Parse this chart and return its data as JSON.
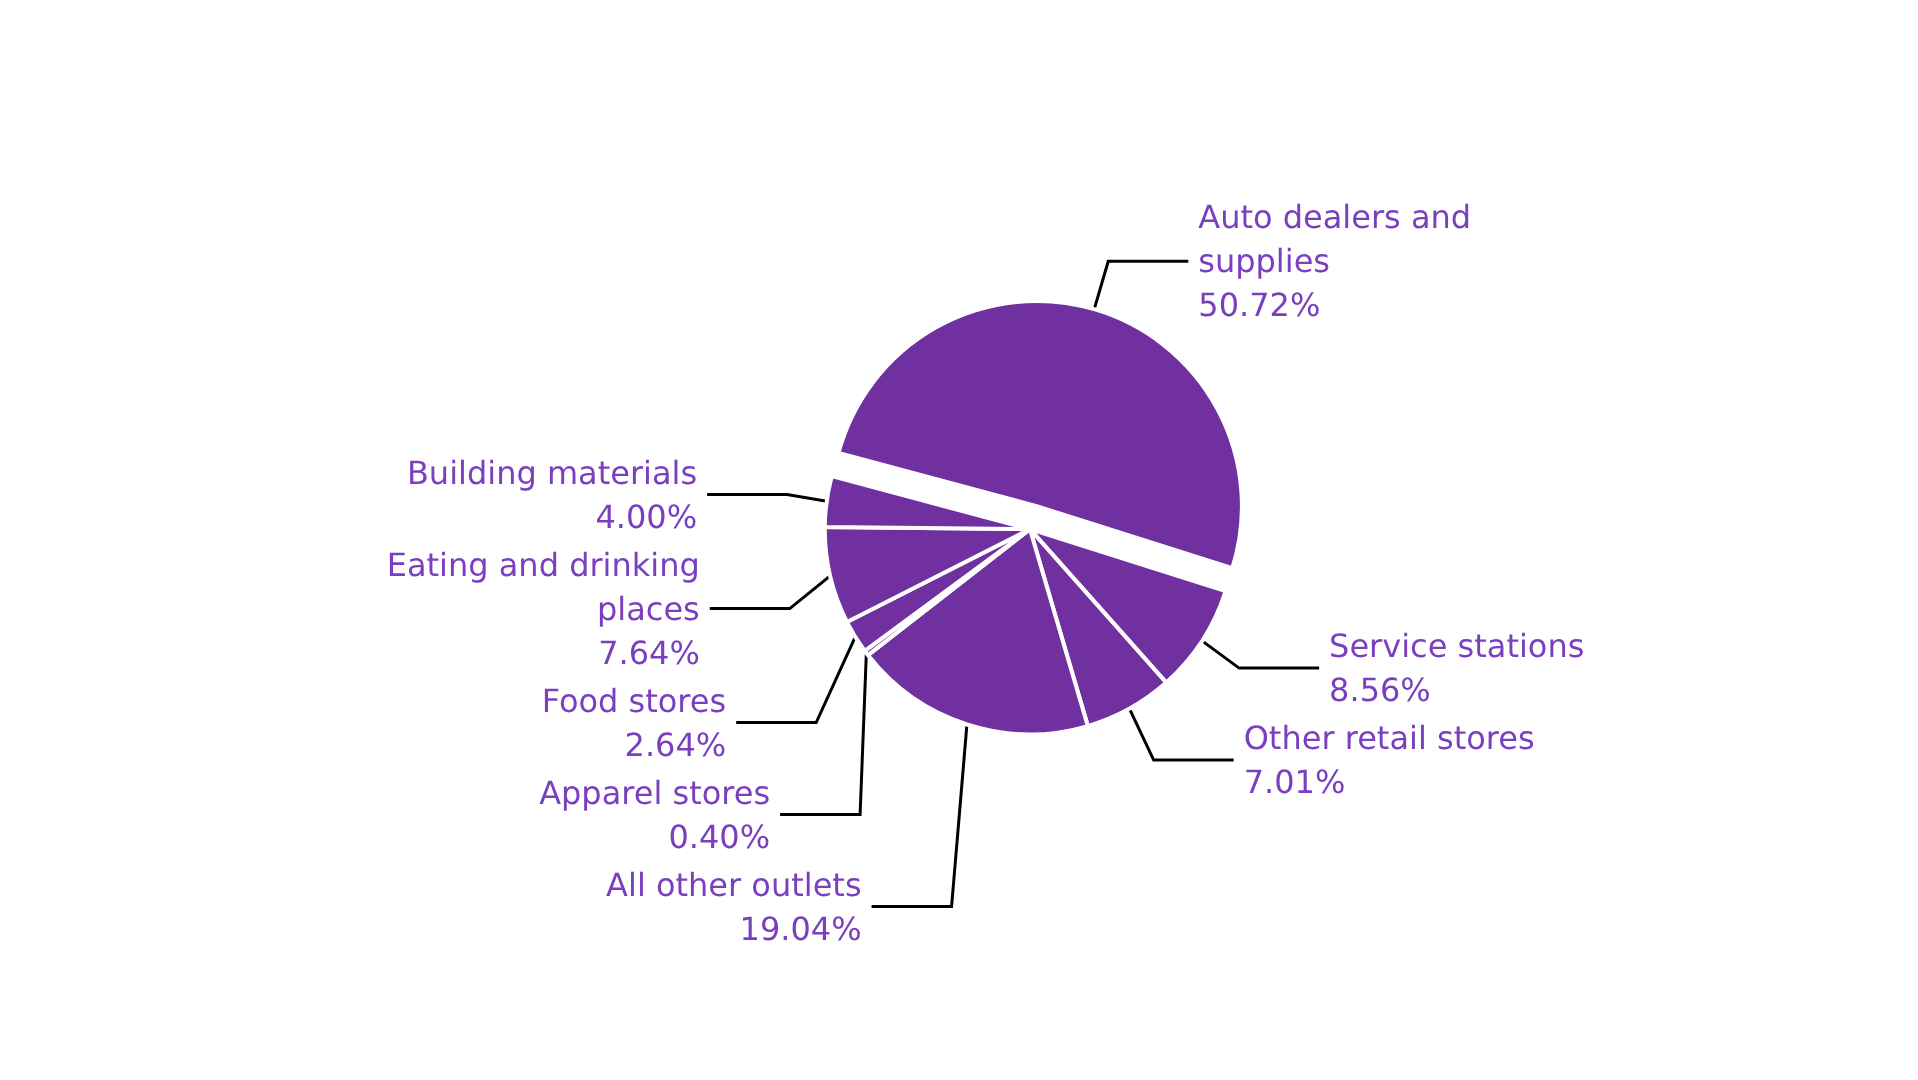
{
  "chart_data": {
    "type": "pie",
    "categories": [
      "Auto dealers and supplies",
      "Service stations",
      "Other retail stores",
      "All other outlets",
      "Apparel stores",
      "Food stores",
      "Eating and drinking places",
      "Building materials"
    ],
    "values": [
      50.72,
      8.56,
      7.01,
      19.04,
      0.4,
      2.64,
      7.64,
      4.0
    ],
    "value_labels": [
      "50.72%",
      "8.56%",
      "7.01%",
      "19.04%",
      "0.40%",
      "2.64%",
      "7.64%",
      "4.00%"
    ],
    "colors": [
      "#7030a0",
      "#7030a0",
      "#7030a0",
      "#7030a0",
      "#7030a0",
      "#7030a0",
      "#7030a0",
      "#7030a0"
    ],
    "legend": false
  }
}
